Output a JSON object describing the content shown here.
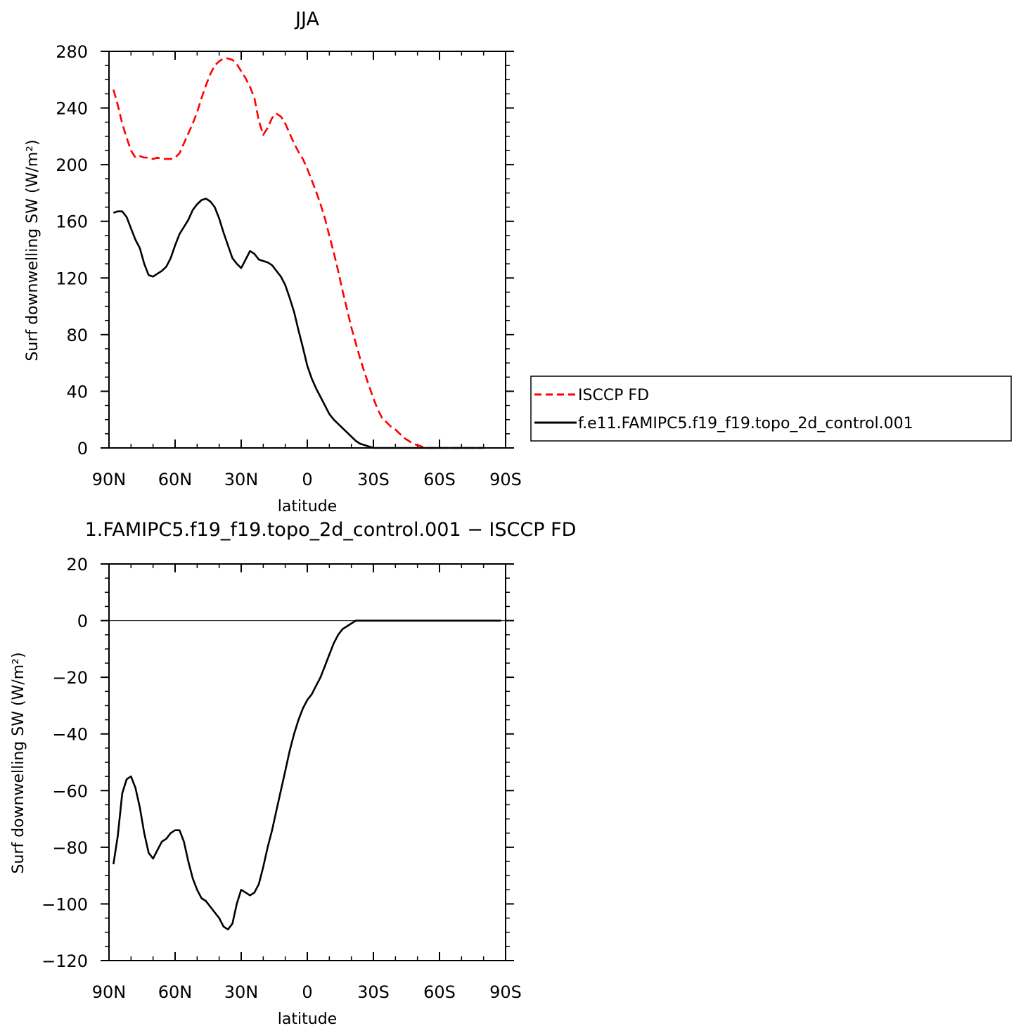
{
  "chart_data": [
    {
      "type": "line",
      "title": "JJA",
      "xlabel": "latitude",
      "ylabel": "Surf downwelling SW (W/m²)",
      "x_ticks": [
        "90N",
        "60N",
        "30N",
        "0",
        "30S",
        "60S",
        "90S"
      ],
      "y_ticks": [
        "0",
        "40",
        "80",
        "120",
        "160",
        "200",
        "240",
        "280"
      ],
      "xlim": [
        -90,
        90
      ],
      "ylim": [
        0,
        280
      ],
      "legend": {
        "placement": "right"
      },
      "series": [
        {
          "name": "ISCCP FD",
          "color": "#ff0000",
          "dash": "dashed",
          "x": [
            -88,
            -86,
            -84,
            -82,
            -80,
            -78,
            -76,
            -74,
            -72,
            -70,
            -68,
            -66,
            -64,
            -62,
            -60,
            -58,
            -56,
            -54,
            -52,
            -50,
            -48,
            -46,
            -44,
            -42,
            -40,
            -38,
            -36,
            -34,
            -32,
            -30,
            -28,
            -26,
            -24,
            -22,
            -20,
            -18,
            -16,
            -14,
            -12,
            -10,
            -8,
            -6,
            -4,
            -2,
            0,
            2,
            4,
            6,
            8,
            10,
            12,
            14,
            16,
            18,
            20,
            22,
            24,
            26,
            28,
            30,
            32,
            34,
            36,
            38,
            40,
            42,
            44,
            46,
            48,
            50,
            52,
            54,
            56,
            58,
            60,
            62,
            64,
            66,
            68,
            70,
            72,
            74,
            76,
            78,
            80
          ],
          "values": [
            253,
            242,
            229,
            219,
            210,
            205,
            206,
            205,
            205,
            204,
            205,
            204,
            204,
            204,
            205,
            208,
            215,
            222,
            229,
            237,
            247,
            256,
            264,
            270,
            273,
            275,
            275,
            274,
            271,
            266,
            261,
            255,
            247,
            231,
            221,
            226,
            233,
            236,
            234,
            229,
            222,
            215,
            209,
            204,
            197,
            189,
            181,
            172,
            162,
            150,
            138,
            125,
            111,
            98,
            85,
            74,
            63,
            53,
            44,
            35,
            27,
            21,
            18,
            15,
            13,
            10,
            7,
            5,
            3,
            2,
            1,
            0,
            0,
            0,
            0,
            0,
            0,
            0,
            0,
            0,
            0,
            0,
            0,
            0,
            0
          ]
        },
        {
          "name": "f.e11.FAMIPC5.f19_f19.topo_2d_control.001",
          "color": "#000000",
          "dash": "solid",
          "x": [
            -88,
            -86,
            -84,
            -82,
            -80,
            -78,
            -76,
            -74,
            -72,
            -70,
            -68,
            -66,
            -64,
            -62,
            -60,
            -58,
            -56,
            -54,
            -52,
            -50,
            -48,
            -46,
            -44,
            -42,
            -40,
            -38,
            -36,
            -34,
            -32,
            -30,
            -28,
            -26,
            -24,
            -22,
            -20,
            -18,
            -16,
            -14,
            -12,
            -10,
            -8,
            -6,
            -4,
            -2,
            0,
            2,
            4,
            6,
            8,
            10,
            12,
            14,
            16,
            18,
            20,
            22,
            24,
            26,
            28,
            30,
            32,
            34,
            36,
            38,
            40,
            42,
            44,
            46,
            48,
            50,
            52,
            54,
            56,
            58,
            60,
            62,
            64,
            66,
            68,
            70,
            72,
            74,
            76,
            78,
            80
          ],
          "values": [
            166,
            167,
            167,
            163,
            155,
            147,
            141,
            130,
            122,
            121,
            123,
            125,
            128,
            134,
            143,
            151,
            156,
            161,
            168,
            172,
            175,
            176,
            174,
            170,
            162,
            152,
            143,
            134,
            130,
            127,
            133,
            139,
            137,
            133,
            132,
            131,
            129,
            125,
            121,
            115,
            106,
            96,
            83,
            71,
            58,
            49,
            42,
            36,
            30,
            24,
            20,
            17,
            14,
            11,
            8,
            5,
            3,
            2,
            1,
            0,
            0,
            0,
            0,
            0,
            0,
            0,
            0,
            0,
            0,
            0,
            0,
            0,
            0,
            0,
            0,
            0,
            0,
            0,
            0,
            0,
            0,
            0,
            0,
            0,
            0
          ]
        }
      ]
    },
    {
      "type": "line",
      "title": "1.FAMIPC5.f19_f19.topo_2d_control.001 − ISCCP FD",
      "xlabel": "latitude",
      "ylabel": "Surf downwelling SW (W/m²)",
      "x_ticks": [
        "90N",
        "60N",
        "30N",
        "0",
        "30S",
        "60S",
        "90S"
      ],
      "y_ticks": [
        "−120",
        "−100",
        "−80",
        "−60",
        "−40",
        "−20",
        "0",
        "20"
      ],
      "xlim": [
        -90,
        90
      ],
      "ylim": [
        -120,
        20
      ],
      "series": [
        {
          "color": "#000000",
          "dash": "solid",
          "x": [
            -88,
            -86,
            -84,
            -82,
            -80,
            -78,
            -76,
            -74,
            -72,
            -70,
            -68,
            -66,
            -64,
            -62,
            -60,
            -58,
            -56,
            -54,
            -52,
            -50,
            -48,
            -46,
            -44,
            -42,
            -40,
            -38,
            -36,
            -34,
            -32,
            -30,
            -28,
            -26,
            -24,
            -22,
            -20,
            -18,
            -16,
            -14,
            -12,
            -10,
            -8,
            -6,
            -4,
            -2,
            0,
            2,
            4,
            6,
            8,
            10,
            12,
            14,
            16,
            18,
            20,
            22,
            24,
            26,
            28,
            30,
            32,
            34,
            36,
            38,
            40,
            42,
            44,
            46,
            48,
            50,
            52,
            54,
            56,
            58,
            60,
            62,
            64,
            66,
            68,
            70,
            72,
            74,
            76,
            78,
            80,
            82,
            84,
            86,
            88
          ],
          "values": [
            -86,
            -76,
            -61,
            -56,
            -55,
            -59,
            -66,
            -75,
            -82,
            -84,
            -81,
            -78,
            -77,
            -75,
            -74,
            -74,
            -78,
            -85,
            -91,
            -95,
            -98,
            -99,
            -101,
            -103,
            -105,
            -108,
            -109,
            -107,
            -100,
            -95,
            -96,
            -97,
            -96,
            -93,
            -87,
            -80,
            -74,
            -67,
            -60,
            -53,
            -46,
            -40,
            -35,
            -31,
            -28,
            -26,
            -23,
            -20,
            -16,
            -12,
            -8,
            -5,
            -3,
            -2,
            -1,
            0,
            0,
            0,
            0,
            0,
            0,
            0,
            0,
            0,
            0,
            0,
            0,
            0,
            0,
            0,
            0,
            0,
            0,
            0,
            0,
            0,
            0,
            0,
            0,
            0,
            0,
            0,
            0,
            0,
            0,
            0,
            0,
            0,
            0
          ]
        }
      ]
    }
  ]
}
